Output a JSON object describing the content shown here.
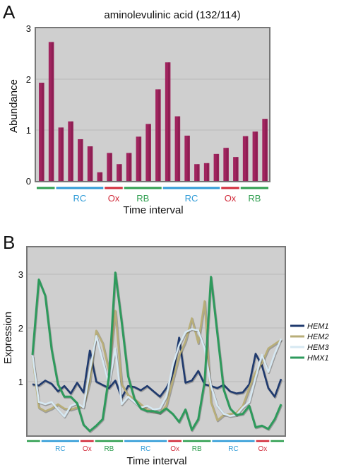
{
  "panels": {
    "a": "A",
    "b": "B"
  },
  "chart_data": [
    {
      "type": "bar",
      "title": "aminolevulinic acid (132/114)",
      "xlabel": "Time interval",
      "ylabel": "Abundance",
      "ylim": [
        0,
        3
      ],
      "yticks": [
        "0",
        "1",
        "2",
        "3"
      ],
      "grid": true,
      "bar_color": "#a0245e",
      "values": [
        1.93,
        2.73,
        1.05,
        1.17,
        0.82,
        0.68,
        0.17,
        0.55,
        0.33,
        0.55,
        0.87,
        1.12,
        1.8,
        2.33,
        1.27,
        0.89,
        0.33,
        0.35,
        0.53,
        0.65,
        0.47,
        0.88,
        0.97,
        1.22
      ],
      "segments": [
        {
          "label": "",
          "color": "#2e9e4f",
          "from": 0,
          "to": 1
        },
        {
          "label": "RC",
          "color": "#2f9bd7",
          "from": 2,
          "to": 6
        },
        {
          "label": "Ox",
          "color": "#d12b3a",
          "from": 7,
          "to": 8
        },
        {
          "label": "RB",
          "color": "#2e9e4f",
          "from": 9,
          "to": 12
        },
        {
          "label": "RC",
          "color": "#2f9bd7",
          "from": 13,
          "to": 18
        },
        {
          "label": "Ox",
          "color": "#d12b3a",
          "from": 19,
          "to": 20
        },
        {
          "label": "RB",
          "color": "#2e9e4f",
          "from": 21,
          "to": 23
        }
      ]
    },
    {
      "type": "line",
      "xlabel": "Time interval",
      "ylabel": "Expression",
      "ylim": [
        0,
        3.5
      ],
      "yticks": [
        "1",
        "2",
        "3"
      ],
      "grid": true,
      "legend": "right",
      "series": [
        {
          "name": "HEM1",
          "color": "#1f3a6e",
          "values": [
            0.95,
            0.93,
            1.02,
            0.96,
            0.82,
            0.92,
            0.78,
            0.98,
            0.8,
            1.58,
            1.0,
            0.94,
            0.88,
            1.02,
            0.7,
            0.92,
            0.9,
            0.84,
            0.92,
            0.82,
            0.72,
            0.88,
            1.1,
            1.82,
            0.98,
            1.02,
            1.2,
            0.95,
            0.92,
            0.88,
            0.94,
            0.82,
            0.78,
            0.8,
            0.95,
            1.52,
            1.3,
            0.88,
            0.72,
            1.05
          ]
        },
        {
          "name": "HEM2",
          "color": "#b8ae78",
          "values": [
            1.47,
            0.52,
            0.45,
            0.5,
            0.58,
            0.5,
            0.48,
            0.52,
            0.54,
            1.0,
            1.95,
            1.72,
            1.2,
            2.32,
            0.95,
            0.75,
            0.68,
            0.58,
            0.48,
            0.44,
            0.42,
            0.55,
            1.02,
            1.48,
            1.75,
            2.18,
            1.72,
            2.5,
            0.62,
            0.28,
            0.38,
            0.4,
            0.42,
            0.55,
            0.88,
            1.18,
            1.35,
            1.62,
            1.7,
            1.78
          ]
        },
        {
          "name": "HEM3",
          "color": "#d6e8f2",
          "values": [
            1.5,
            0.62,
            0.58,
            0.62,
            0.48,
            0.35,
            0.55,
            0.6,
            0.52,
            1.2,
            1.85,
            1.4,
            0.95,
            1.62,
            0.58,
            0.72,
            0.62,
            0.52,
            0.55,
            0.48,
            0.5,
            0.72,
            1.3,
            1.68,
            1.92,
            1.98,
            1.95,
            1.62,
            0.92,
            0.55,
            0.4,
            0.36,
            0.38,
            0.52,
            0.62,
            1.08,
            1.5,
            1.18,
            1.52,
            1.8
          ]
        },
        {
          "name": "HMX1",
          "color": "#2e9a5c",
          "values": [
            1.5,
            2.9,
            2.6,
            1.6,
            0.95,
            0.72,
            0.72,
            0.6,
            0.2,
            0.08,
            0.18,
            0.3,
            1.1,
            3.03,
            2.1,
            1.1,
            0.68,
            0.5,
            0.45,
            0.45,
            0.42,
            0.5,
            0.4,
            0.25,
            0.48,
            0.1,
            0.3,
            1.0,
            2.95,
            1.9,
            0.85,
            0.5,
            0.38,
            0.4,
            0.55,
            0.15,
            0.18,
            0.12,
            0.3,
            0.58
          ]
        }
      ],
      "segments": [
        {
          "label": "",
          "color": "#2e9e4f",
          "from": 0,
          "to": 2
        },
        {
          "label": "RC",
          "color": "#2f9bd7",
          "from": 3,
          "to": 10
        },
        {
          "label": "Ox",
          "color": "#d12b3a",
          "from": 11,
          "to": 13
        },
        {
          "label": "RB",
          "color": "#2e9e4f",
          "from": 14,
          "to": 19
        },
        {
          "label": "RC",
          "color": "#2f9bd7",
          "from": 20,
          "to": 28
        },
        {
          "label": "Ox",
          "color": "#d12b3a",
          "from": 29,
          "to": 31
        },
        {
          "label": "RB",
          "color": "#2e9e4f",
          "from": 32,
          "to": 37
        },
        {
          "label": "RC",
          "color": "#2f9bd7",
          "from": 38,
          "to": 46
        },
        {
          "label": "Ox",
          "color": "#d12b3a",
          "from": 47,
          "to": 49
        },
        {
          "label": "",
          "color": "#2e9e4f",
          "from": 50,
          "to": 52
        }
      ],
      "segment_count": 53
    }
  ]
}
